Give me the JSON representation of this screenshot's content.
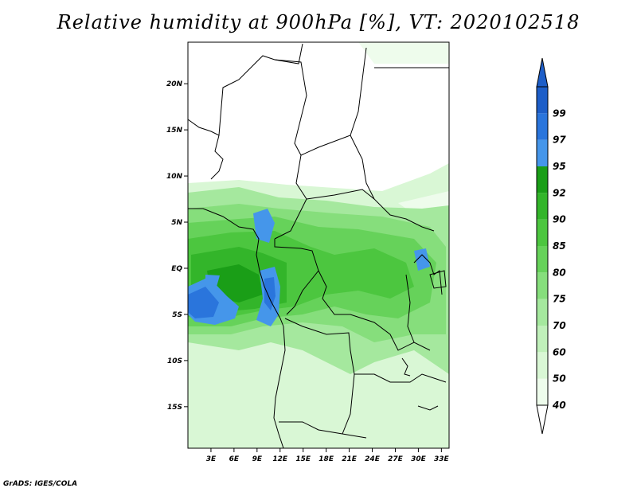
{
  "title": "Relative humidity at 900hPa [%], VT: 2020102518",
  "credit": "GrADS: IGES/COLA",
  "map": {
    "lon_range": [
      0,
      34
    ],
    "lat_range": [
      -19.5,
      24.5
    ],
    "lon_ticks": [
      {
        "v": 3,
        "label": "3E"
      },
      {
        "v": 6,
        "label": "6E"
      },
      {
        "v": 9,
        "label": "9E"
      },
      {
        "v": 12,
        "label": "12E"
      },
      {
        "v": 15,
        "label": "15E"
      },
      {
        "v": 18,
        "label": "18E"
      },
      {
        "v": 21,
        "label": "21E"
      },
      {
        "v": 24,
        "label": "24E"
      },
      {
        "v": 27,
        "label": "27E"
      },
      {
        "v": 30,
        "label": "30E"
      },
      {
        "v": 33,
        "label": "33E"
      }
    ],
    "lat_ticks": [
      {
        "v": 20,
        "label": "20N"
      },
      {
        "v": 15,
        "label": "15N"
      },
      {
        "v": 10,
        "label": "10N"
      },
      {
        "v": 5,
        "label": "5N"
      },
      {
        "v": 0,
        "label": "EQ"
      },
      {
        "v": -5,
        "label": "5S"
      },
      {
        "v": -10,
        "label": "10S"
      },
      {
        "v": -15,
        "label": "15S"
      }
    ]
  },
  "colorbar": {
    "levels": [
      "40",
      "50",
      "60",
      "70",
      "75",
      "80",
      "85",
      "90",
      "92",
      "95",
      "97",
      "99"
    ],
    "colors": [
      "#eefcec",
      "#d9f7d5",
      "#c0f0ba",
      "#a5e89e",
      "#86de7c",
      "#66d25a",
      "#4cc63f",
      "#33b52a",
      "#1a9e17",
      "#4596ea",
      "#2a75dc",
      "#1d5ec8"
    ],
    "below_color": "#ffffff",
    "above_color": "#1d5ec8"
  }
}
